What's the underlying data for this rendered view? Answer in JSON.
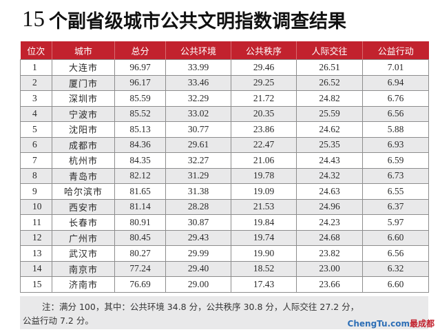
{
  "header": {
    "title_number": "15",
    "title_text": "个副省级城市公共文明指数调查结果"
  },
  "table": {
    "columns": [
      "位次",
      "城市",
      "总分",
      "公共环境",
      "公共秩序",
      "人际交往",
      "公益行动"
    ],
    "rows": [
      [
        "1",
        "大连市",
        "96.97",
        "33.99",
        "29.46",
        "26.51",
        "7.01"
      ],
      [
        "2",
        "厦门市",
        "96.17",
        "33.46",
        "29.25",
        "26.52",
        "6.94"
      ],
      [
        "3",
        "深圳市",
        "85.59",
        "32.29",
        "21.72",
        "24.82",
        "6.76"
      ],
      [
        "4",
        "宁波市",
        "85.52",
        "33.02",
        "20.35",
        "25.59",
        "6.56"
      ],
      [
        "5",
        "沈阳市",
        "85.13",
        "30.77",
        "23.86",
        "24.62",
        "5.88"
      ],
      [
        "6",
        "成都市",
        "84.36",
        "29.61",
        "22.47",
        "25.35",
        "6.93"
      ],
      [
        "7",
        "杭州市",
        "84.35",
        "32.27",
        "21.06",
        "24.43",
        "6.59"
      ],
      [
        "8",
        "青岛市",
        "82.12",
        "31.29",
        "19.78",
        "24.32",
        "6.73"
      ],
      [
        "9",
        "哈尔滨市",
        "81.65",
        "31.38",
        "19.09",
        "24.63",
        "6.55"
      ],
      [
        "10",
        "西安市",
        "81.14",
        "28.28",
        "21.53",
        "24.96",
        "6.37"
      ],
      [
        "11",
        "长春市",
        "80.91",
        "30.87",
        "19.84",
        "24.23",
        "5.97"
      ],
      [
        "12",
        "广州市",
        "80.45",
        "29.43",
        "19.74",
        "24.68",
        "6.60"
      ],
      [
        "13",
        "武汉市",
        "80.27",
        "29.99",
        "19.90",
        "23.82",
        "6.56"
      ],
      [
        "14",
        "南京市",
        "77.24",
        "29.40",
        "18.52",
        "23.00",
        "6.32"
      ],
      [
        "15",
        "济南市",
        "76.69",
        "29.00",
        "17.43",
        "23.66",
        "6.60"
      ]
    ]
  },
  "footer": {
    "note_line1": "注：满分 100，其中：公共环境 34.8 分，公共秩序 30.8 分，人际交往 27.2 分，",
    "note_line2": "公益行动 7.2 分。"
  },
  "watermark": {
    "latin": "ChengTu.com",
    "chinese": "最成都"
  },
  "colors": {
    "header_red": "#c2222e",
    "row_alt_gray": "#e9e9ea",
    "watermark_blue": "#2e6fb6"
  }
}
